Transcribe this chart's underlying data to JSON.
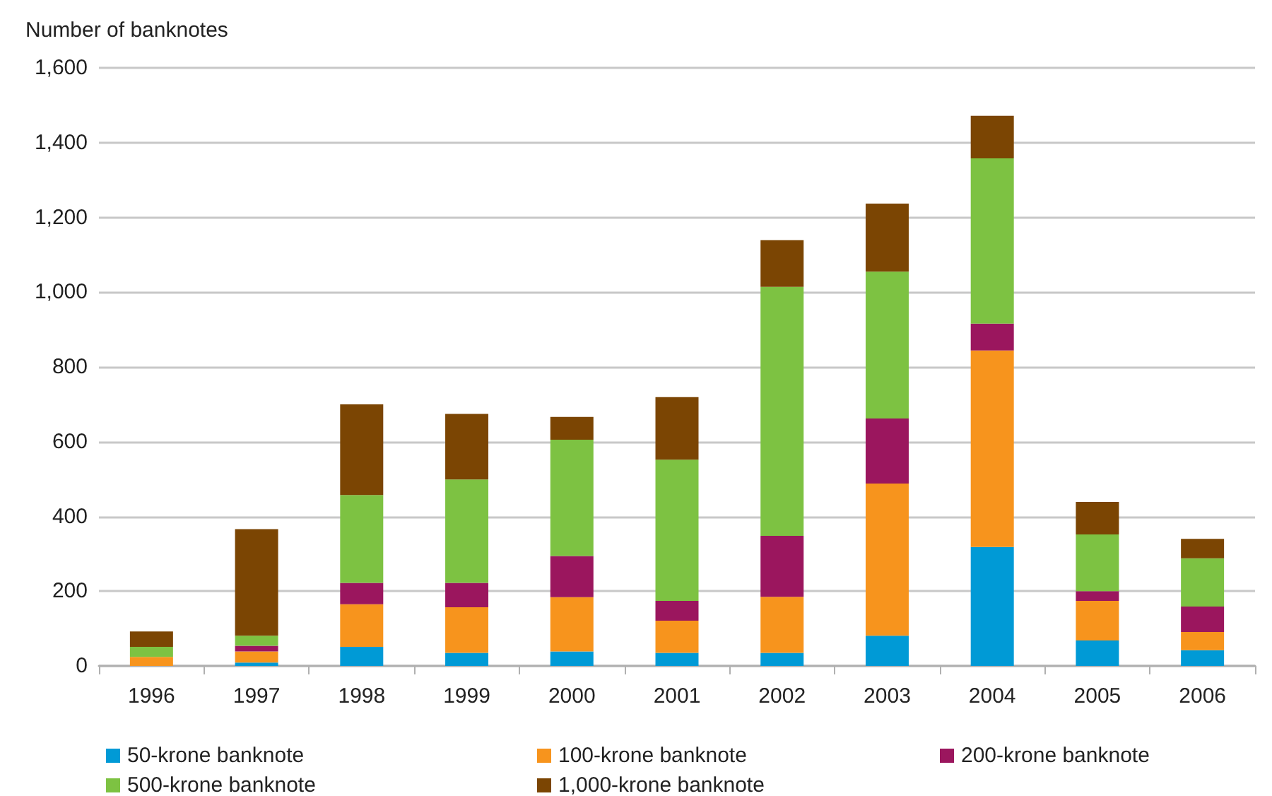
{
  "chart_data": {
    "type": "bar",
    "stacked": true,
    "ylabel": "Number of banknotes",
    "categories": [
      "1996",
      "1997",
      "1998",
      "1999",
      "2000",
      "2001",
      "2002",
      "2003",
      "2004",
      "2005",
      "2006"
    ],
    "series": [
      {
        "name": "50-krone banknote",
        "color": "#009ad6",
        "values": [
          0,
          9,
          51,
          35,
          39,
          35,
          35,
          81,
          318,
          68,
          42
        ]
      },
      {
        "name": "100-krone banknote",
        "color": "#f7941d",
        "values": [
          24,
          30,
          114,
          122,
          145,
          86,
          150,
          407,
          526,
          106,
          49
        ]
      },
      {
        "name": "200-krone banknote",
        "color": "#9b165e",
        "values": [
          0,
          15,
          57,
          65,
          110,
          53,
          163,
          174,
          72,
          26,
          68
        ]
      },
      {
        "name": "500-krone banknote",
        "color": "#7dc242",
        "values": [
          27,
          27,
          235,
          277,
          311,
          378,
          666,
          393,
          442,
          152,
          129
        ]
      },
      {
        "name": "1,000-krone banknote",
        "color": "#7b4503",
        "values": [
          41,
          285,
          243,
          175,
          61,
          167,
          125,
          182,
          114,
          87,
          52
        ]
      }
    ],
    "ylim": [
      0,
      1600
    ],
    "yticks": [
      0,
      200,
      400,
      600,
      800,
      {
        "value": 1000,
        "label": "1,000"
      },
      {
        "value": 1200,
        "label": "1,200"
      },
      {
        "value": 1400,
        "label": "1,400"
      },
      {
        "value": 1600,
        "label": "1,600"
      }
    ],
    "grid": "y",
    "legend": "bottom"
  }
}
